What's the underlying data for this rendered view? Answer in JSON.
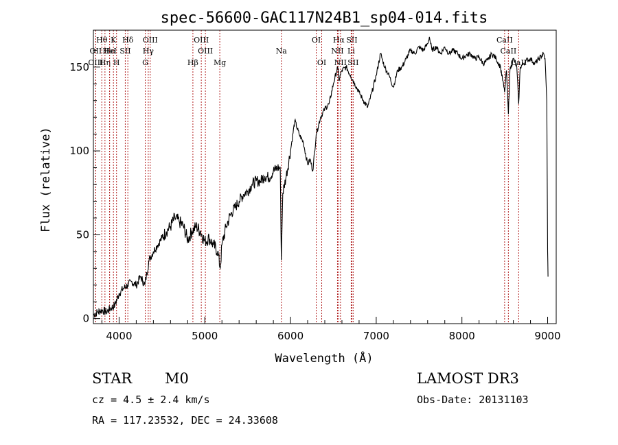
{
  "chart_data": {
    "type": "line",
    "title": "spec-56600-GAC117N24B1_sp04-014.fits",
    "xlabel": "Wavelength (Å)",
    "ylabel": "Flux (relative)",
    "xlim": [
      3700,
      9100
    ],
    "ylim": [
      -3,
      172
    ],
    "xticks": [
      4000,
      5000,
      6000,
      7000,
      8000,
      9000
    ],
    "yticks": [
      0,
      50,
      100,
      150
    ],
    "series": [
      {
        "name": "flux",
        "points": [
          [
            3700,
            2
          ],
          [
            3750,
            4
          ],
          [
            3800,
            5
          ],
          [
            3850,
            4
          ],
          [
            3900,
            6
          ],
          [
            3950,
            8
          ],
          [
            4000,
            15
          ],
          [
            4050,
            18
          ],
          [
            4100,
            20
          ],
          [
            4150,
            22
          ],
          [
            4200,
            20
          ],
          [
            4250,
            25
          ],
          [
            4300,
            20
          ],
          [
            4350,
            35
          ],
          [
            4400,
            40
          ],
          [
            4450,
            44
          ],
          [
            4500,
            48
          ],
          [
            4550,
            52
          ],
          [
            4600,
            55
          ],
          [
            4650,
            60
          ],
          [
            4700,
            58
          ],
          [
            4750,
            55
          ],
          [
            4800,
            47
          ],
          [
            4850,
            52
          ],
          [
            4900,
            55
          ],
          [
            4950,
            52
          ],
          [
            5000,
            46
          ],
          [
            5050,
            48
          ],
          [
            5100,
            44
          ],
          [
            5150,
            40
          ],
          [
            5180,
            30
          ],
          [
            5200,
            44
          ],
          [
            5250,
            55
          ],
          [
            5300,
            62
          ],
          [
            5350,
            66
          ],
          [
            5400,
            70
          ],
          [
            5450,
            74
          ],
          [
            5500,
            76
          ],
          [
            5550,
            80
          ],
          [
            5600,
            82
          ],
          [
            5650,
            82
          ],
          [
            5700,
            85
          ],
          [
            5750,
            84
          ],
          [
            5800,
            88
          ],
          [
            5850,
            90
          ],
          [
            5880,
            90
          ],
          [
            5893,
            35
          ],
          [
            5910,
            75
          ],
          [
            5950,
            85
          ],
          [
            6000,
            100
          ],
          [
            6050,
            118
          ],
          [
            6100,
            110
          ],
          [
            6150,
            105
          ],
          [
            6200,
            92
          ],
          [
            6230,
            95
          ],
          [
            6260,
            88
          ],
          [
            6300,
            110
          ],
          [
            6350,
            120
          ],
          [
            6400,
            125
          ],
          [
            6450,
            128
          ],
          [
            6500,
            140
          ],
          [
            6550,
            150
          ],
          [
            6563,
            142
          ],
          [
            6600,
            148
          ],
          [
            6650,
            150
          ],
          [
            6700,
            145
          ],
          [
            6750,
            140
          ],
          [
            6800,
            135
          ],
          [
            6850,
            130
          ],
          [
            6900,
            126
          ],
          [
            6950,
            135
          ],
          [
            7000,
            145
          ],
          [
            7050,
            158
          ],
          [
            7100,
            150
          ],
          [
            7150,
            145
          ],
          [
            7200,
            138
          ],
          [
            7250,
            148
          ],
          [
            7300,
            150
          ],
          [
            7350,
            155
          ],
          [
            7400,
            160
          ],
          [
            7450,
            158
          ],
          [
            7500,
            162
          ],
          [
            7550,
            160
          ],
          [
            7600,
            164
          ],
          [
            7620,
            168
          ],
          [
            7650,
            160
          ],
          [
            7700,
            162
          ],
          [
            7750,
            158
          ],
          [
            7800,
            162
          ],
          [
            7850,
            158
          ],
          [
            7900,
            160
          ],
          [
            7950,
            158
          ],
          [
            8000,
            155
          ],
          [
            8050,
            157
          ],
          [
            8100,
            158
          ],
          [
            8150,
            155
          ],
          [
            8200,
            156
          ],
          [
            8250,
            152
          ],
          [
            8300,
            154
          ],
          [
            8350,
            158
          ],
          [
            8400,
            155
          ],
          [
            8450,
            150
          ],
          [
            8498,
            135
          ],
          [
            8520,
            148
          ],
          [
            8542,
            122
          ],
          [
            8560,
            148
          ],
          [
            8600,
            155
          ],
          [
            8640,
            150
          ],
          [
            8662,
            128
          ],
          [
            8680,
            150
          ],
          [
            8720,
            152
          ],
          [
            8750,
            154
          ],
          [
            8800,
            155
          ],
          [
            8850,
            152
          ],
          [
            8900,
            155
          ],
          [
            8950,
            158
          ],
          [
            8970,
            155
          ],
          [
            8990,
            130
          ],
          [
            9000,
            40
          ],
          [
            9005,
            25
          ]
        ]
      }
    ],
    "lines_top": [
      "Hθ",
      "OII",
      "OIII",
      "He",
      "K",
      "Hη",
      "HeI",
      "H",
      "SII",
      "Hδ",
      "OIII",
      "Hγ",
      "G",
      "OIII",
      "OIII",
      "Hβ",
      "Mg",
      "Na",
      "OI",
      "OI",
      "Hα",
      "NII",
      "NII",
      "SII",
      "Li",
      "SII",
      "CaII",
      "CaII",
      "CaII"
    ],
    "lines": [
      {
        "label": "Hθ",
        "wave": 3798,
        "row": 1
      },
      {
        "label": "OII",
        "wave": 3727,
        "row": 2
      },
      {
        "label": "OIII",
        "wave": 3727,
        "row": 3
      },
      {
        "label": "He",
        "wave": 3889,
        "row": 2
      },
      {
        "label": "K",
        "wave": 3934,
        "row": 1
      },
      {
        "label": "Hη",
        "wave": 3835,
        "row": 3
      },
      {
        "label": "HeI",
        "wave": 3889,
        "row": 2
      },
      {
        "label": "H",
        "wave": 3970,
        "row": 3
      },
      {
        "label": "SII",
        "wave": 4072,
        "row": 2
      },
      {
        "label": "Hδ",
        "wave": 4102,
        "row": 1
      },
      {
        "label": "OIII",
        "wave": 4363,
        "row": 1
      },
      {
        "label": "Hγ",
        "wave": 4340,
        "row": 2
      },
      {
        "label": "G",
        "wave": 4305,
        "row": 3
      },
      {
        "label": "OIII",
        "wave": 4959,
        "row": 1
      },
      {
        "label": "OIII",
        "wave": 5007,
        "row": 2
      },
      {
        "label": "Hβ",
        "wave": 4861,
        "row": 3
      },
      {
        "label": "Mg",
        "wave": 5175,
        "row": 3
      },
      {
        "label": "Na",
        "wave": 5893,
        "row": 2
      },
      {
        "label": "OI",
        "wave": 6300,
        "row": 1
      },
      {
        "label": "OI",
        "wave": 6364,
        "row": 3
      },
      {
        "label": "Hα",
        "wave": 6563,
        "row": 1
      },
      {
        "label": "NII",
        "wave": 6548,
        "row": 2
      },
      {
        "label": "NII",
        "wave": 6583,
        "row": 3
      },
      {
        "label": "SII",
        "wave": 6716,
        "row": 1
      },
      {
        "label": "Li",
        "wave": 6708,
        "row": 2
      },
      {
        "label": "SII",
        "wave": 6731,
        "row": 3
      },
      {
        "label": "CaII",
        "wave": 8498,
        "row": 1
      },
      {
        "label": "CaII",
        "wave": 8542,
        "row": 2
      },
      {
        "label": "CaII",
        "wave": 8662,
        "row": 3
      }
    ]
  },
  "info": {
    "object_class": "STAR",
    "subclass": "M0",
    "survey": "LAMOST DR3",
    "cz": "cz = 4.5 ± 2.4 km/s",
    "obs_date": "Obs-Date: 20131103",
    "coords": "RA = 117.23532, DEC =  24.33608"
  }
}
